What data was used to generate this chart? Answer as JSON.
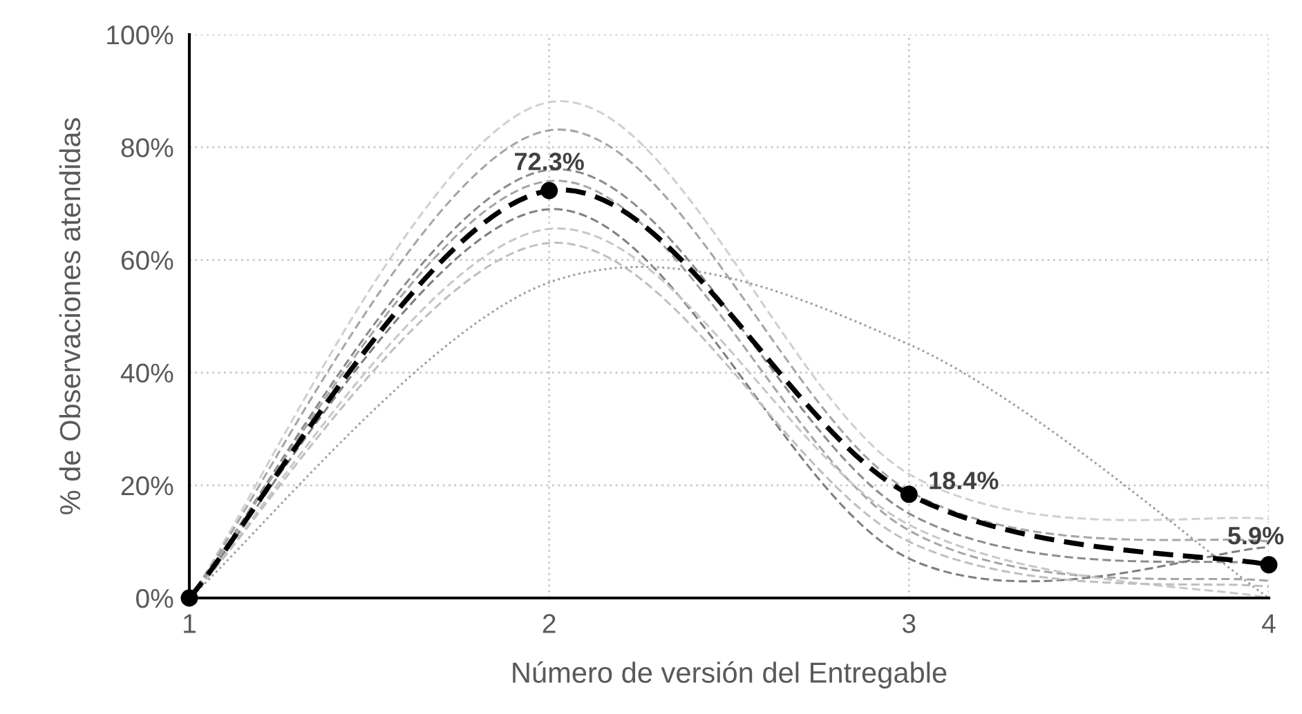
{
  "chart_data": {
    "type": "line",
    "xlabel": "Número de versión del Entregable",
    "ylabel": "% de Observaciones atendidas",
    "x": [
      1,
      2,
      3,
      4
    ],
    "xlim": [
      1,
      4
    ],
    "xticks": [
      1,
      2,
      3,
      4
    ],
    "ylim": [
      0,
      100
    ],
    "yticks": [
      {
        "value": 0,
        "label": "0%"
      },
      {
        "value": 20,
        "label": "20%"
      },
      {
        "value": 40,
        "label": "40%"
      },
      {
        "value": 60,
        "label": "60%"
      },
      {
        "value": 80,
        "label": "80%"
      },
      {
        "value": 100,
        "label": "100%"
      }
    ],
    "grid": true,
    "series": [
      {
        "color": "#d0d0d0",
        "line_style": "dashed",
        "values": [
          0,
          88,
          22,
          14
        ]
      },
      {
        "color": "#a6a6a6",
        "line_style": "dashed",
        "values": [
          0,
          83,
          19,
          10
        ]
      },
      {
        "color": "#8c8c8c",
        "line_style": "dashed",
        "values": [
          0,
          76,
          15,
          6
        ]
      },
      {
        "color": "#a6a6a6",
        "line_style": "dashed",
        "values": [
          0,
          74,
          12,
          3
        ]
      },
      {
        "color": "#7f7f7f",
        "line_style": "dashed",
        "values": [
          0,
          69,
          7,
          9
        ]
      },
      {
        "color": "#c8c8c8",
        "line_style": "dashed",
        "values": [
          0,
          65.5,
          13,
          0
        ]
      },
      {
        "color": "#bfbfbf",
        "line_style": "dashed",
        "values": [
          0,
          63,
          10,
          2
        ]
      },
      {
        "color": "#a0a0a0",
        "line_style": "dotted",
        "values": [
          0,
          56,
          45,
          0
        ]
      },
      {
        "color": "#000000",
        "line_style": "dashed",
        "marker": "circle",
        "values": [
          0,
          72.3,
          18.4,
          5.9
        ],
        "value_labels": [
          null,
          "72.3%",
          "18.4%",
          "5.9%"
        ]
      }
    ]
  }
}
